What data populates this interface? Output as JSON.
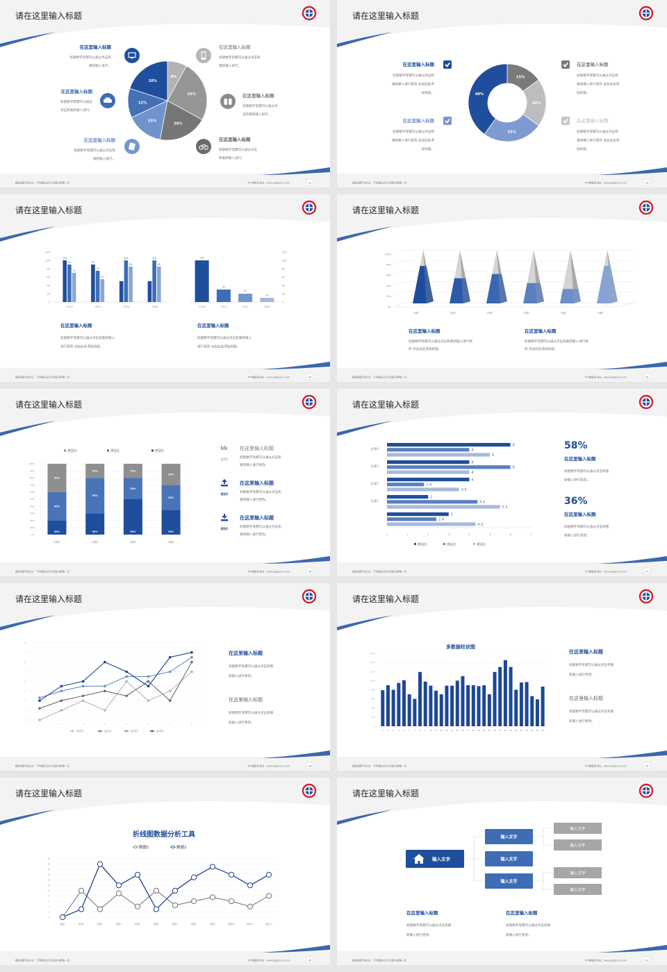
{
  "deck": {
    "slide_title": "请在这里输入标题",
    "footer_left": "模版标题字体方法：下列例图·幻灯片标题·说明第一页",
    "footer_right": "PPT模板网   网址：www.pptgenius.com"
  },
  "colors": {
    "dark_blue": "#1f4e9c",
    "mid_blue": "#3e6db5",
    "light_blue": "#7696cc",
    "pale_blue": "#a3b9de",
    "dark_gray": "#6f6f6f",
    "gray": "#959595",
    "light_gray": "#b7b7b7",
    "logo_red": "#d32030"
  },
  "slides": [
    {
      "page": "12",
      "items": [
        {
          "title": "在这里输入标题",
          "desc": [
            "标题数字等都可以通过点击和",
            "重新输入进行。"
          ],
          "icon": "monitor-icon"
        },
        {
          "title": "在这里输入标题",
          "desc": [
            "标题数字等都可以通过",
            "点击和重新输入进行。"
          ],
          "icon": "car-icon"
        },
        {
          "title": "在这里输入标题",
          "desc": [
            "标题数字等都可以通过点击和",
            "重新输入进行。"
          ],
          "icon": "book-icon"
        },
        {
          "title": "在这里输入标题",
          "desc": [
            "标题数字等都可以通过点击和",
            "重新输入进行。"
          ],
          "icon": "phone-icon"
        },
        {
          "title": "在这里输入标题",
          "desc": [
            "标题数字等都可以通过点",
            "击和重新输入进行。"
          ],
          "icon": "binoculars-icon"
        },
        {
          "title": "在这里输入标题",
          "desc": [
            "标题数字等都可以通过点击",
            "和重新输入进行。"
          ],
          "icon": "bicycle-icon"
        }
      ]
    },
    {
      "page": "13",
      "items": [
        {
          "title": "在这里输入标题",
          "desc": [
            "标题数字等都可以通过点击和",
            "重新输入进行更改 点击此处添",
            "加标题。"
          ],
          "icon": "checkbox-icon"
        },
        {
          "title": "在这里输入标题",
          "desc": [
            "标题数字等都可以通过点击和",
            "重新输入进行更改 点击此处添",
            "加标题。"
          ],
          "icon": "checkbox-icon"
        },
        {
          "title": "在这里输入标题",
          "desc": [
            "标题数字等都可以通过点击和",
            "重新输入进行更改 点击此处添",
            "加标题。"
          ],
          "icon": "checkbox-icon"
        },
        {
          "title": "在这里输入标题",
          "desc": [
            "标题数字等都可以通过点击和",
            "重新输入进行更改 点击此处添",
            "加标题。"
          ],
          "icon": "checkbox-icon"
        }
      ]
    },
    {
      "page": "14",
      "items": [
        {
          "title": "在这里输入标题",
          "desc": [
            "标题数字等都可以通过点击和重新输入",
            "进行更改 点击此处添加标题。"
          ]
        },
        {
          "title": "在这里输入标题",
          "desc": [
            "标题数字等都可以通过点击和重新输入",
            "进行更改 点击此处添加标题。"
          ]
        }
      ]
    },
    {
      "page": "15",
      "items": [
        {
          "title": "在这里输入标题",
          "desc": [
            "标题数字等都可以通过点击和重新输入进行更",
            "改 点击此处添加标题。"
          ]
        },
        {
          "title": "在这里输入标题",
          "desc": [
            "标题数字等都可以通过点击和重新输入进行更",
            "改 点击此处添加标题。"
          ]
        }
      ]
    },
    {
      "page": "16",
      "items": [
        {
          "title": "在这里输入标题",
          "desc": [
            "标题数字等都可以通过点击和",
            "重新输入进行更改。"
          ],
          "label": "类别3",
          "icon": "bar-chart-icon"
        },
        {
          "title": "在这里输入标题",
          "desc": [
            "标题数字等都可以通过点击和",
            "重新输入进行更改。"
          ],
          "label": "类别2",
          "icon": "upload-icon"
        },
        {
          "title": "在这里输入标题",
          "desc": [
            "标题数字等都可以通过点击和",
            "重新输入进行更改。"
          ],
          "label": "类别1",
          "icon": "download-icon"
        }
      ]
    },
    {
      "page": "17",
      "stats": [
        {
          "value": "58%",
          "title": "在这里输入标题",
          "desc": [
            "标题数字等都可以通过点击和重",
            "新输入进行更改。"
          ]
        },
        {
          "value": "36%",
          "title": "在这里输入标题",
          "desc": [
            "标题数字等都可以通过点击和重",
            "新输入进行更改。"
          ]
        }
      ]
    },
    {
      "page": "18",
      "items": [
        {
          "title": "在这里输入标题",
          "desc": [
            "标题数字等都可以通过点击和重",
            "新输入进行更改。"
          ]
        },
        {
          "title": "在这里输入标题",
          "desc": [
            "标题数字等都可以通过点击和重",
            "新输入进行更改。"
          ]
        }
      ]
    },
    {
      "page": "19",
      "items": [
        {
          "title": "在这里输入标题",
          "desc": [
            "标题数字等都可以通过点击和重",
            "新输入进行更改。"
          ]
        },
        {
          "title": "在这里输入标题",
          "desc": [
            "标题数字等都可以通过点击和重",
            "新输入进行更改。"
          ]
        }
      ]
    },
    {
      "page": "20"
    },
    {
      "page": "21",
      "diagram": {
        "root": "输入文字",
        "mids": [
          "输入文字",
          "输入文字",
          "输入文字"
        ],
        "leaves": [
          "输入文字",
          "输入文字",
          "输入文字",
          "输入文字"
        ]
      },
      "items": [
        {
          "title": "在这里输入标题",
          "desc": [
            "标题数字等都可以通过点击和重",
            "新输入进行更改。"
          ]
        },
        {
          "title": "在这里输入标题",
          "desc": [
            "标题数字等都可以通过点击和重",
            "新输入进行更改。"
          ]
        }
      ]
    }
  ],
  "chart_data": [
    {
      "type": "pie",
      "values": [
        8,
        25,
        20,
        15,
        12,
        20
      ],
      "labels": [
        "8%",
        "25%",
        "20%",
        "15%",
        "12%",
        "20%"
      ]
    },
    {
      "type": "pie",
      "donut": true,
      "values": [
        15,
        20,
        25,
        40
      ],
      "labels": [
        "15%",
        "20%",
        "25%",
        "40%"
      ]
    },
    {
      "type": "bar",
      "categories": [
        "2010",
        "2012",
        "2014",
        "2016"
      ],
      "ylim": [
        0,
        120
      ],
      "yticks": [
        "0",
        "20",
        "40",
        "60",
        "80",
        "100",
        "120"
      ],
      "series": [
        {
          "values": [
            100,
            90,
            50,
            50
          ],
          "labels": [
            "100",
            "90",
            null,
            null
          ]
        },
        {
          "values": [
            90,
            75,
            100,
            100
          ],
          "labels": [
            "90",
            "75",
            "100",
            "100"
          ]
        },
        {
          "values": [
            70,
            55,
            85,
            85
          ],
          "labels": [
            "70",
            "55",
            "85",
            "85"
          ]
        }
      ]
    },
    {
      "type": "bar",
      "categories": [
        "2016",
        "2014",
        "2012",
        "2010"
      ],
      "values": [
        100,
        30,
        20,
        10
      ],
      "labels": [
        "100",
        "30",
        "20",
        "10"
      ],
      "ylim": [
        0,
        120
      ],
      "yticks": [
        "0",
        "20",
        "40",
        "60",
        "80",
        "100",
        "120"
      ],
      "axis": "right"
    },
    {
      "type": "bar",
      "style": "3d-pyramid",
      "categories": [
        "分类1",
        "分类2",
        "分类3",
        "分类4",
        "分类5",
        "分类6"
      ],
      "values": [
        70,
        47,
        55,
        38,
        27,
        70
      ],
      "ylim": [
        0,
        100
      ],
      "yticks": [
        "0%",
        "20%",
        "40%",
        "60%",
        "80%",
        "100%"
      ]
    },
    {
      "type": "bar",
      "stacked": "percent",
      "categories": [
        "分类1",
        "分类2",
        "分类3",
        "分类4"
      ],
      "yticks": [
        "0%",
        "10%",
        "20%",
        "30%",
        "40%",
        "50%",
        "60%",
        "70%",
        "80%",
        "90%",
        "100%"
      ],
      "legend": "top",
      "series": [
        {
          "name": "类别1",
          "values": [
            20,
            30,
            50,
            35
          ],
          "labels": [
            "20%",
            "30%",
            "50%",
            "35%"
          ]
        },
        {
          "name": "类别2",
          "values": [
            40,
            50,
            30,
            35
          ],
          "labels": [
            "40%",
            "50%",
            "30%",
            "35%"
          ]
        },
        {
          "name": "类别3",
          "values": [
            40,
            20,
            20,
            30
          ],
          "labels": [
            "40%",
            "20%",
            "20%",
            "30%"
          ]
        }
      ]
    },
    {
      "type": "bar",
      "orientation": "horizontal",
      "categories": [
        "分类4",
        "分类3",
        "分类2",
        "分类1",
        ""
      ],
      "xlim": [
        0,
        7
      ],
      "xticks": [
        "0",
        "1",
        "2",
        "3",
        "4",
        "5",
        "6",
        "7"
      ],
      "legend": "bottom",
      "series": [
        {
          "name": "类别3",
          "values": [
            6,
            4,
            4,
            2,
            3
          ],
          "labels": [
            "6",
            "4",
            "4",
            "2",
            "3"
          ]
        },
        {
          "name": "类别2",
          "values": [
            4,
            6,
            1.8,
            4.4,
            2.4
          ],
          "labels": [
            "4",
            "6",
            "1.8",
            "4.4",
            "2.4"
          ]
        },
        {
          "name": "类别1",
          "values": [
            5,
            4,
            3.5,
            5.5,
            4.3
          ],
          "labels": [
            "5",
            "4",
            "3.5",
            "5.5",
            "4.3"
          ]
        }
      ]
    },
    {
      "type": "line",
      "x": [
        "1",
        "2",
        "3",
        "4",
        "5",
        "6",
        "7",
        "8"
      ],
      "ylim": [
        0,
        8
      ],
      "yticks": [
        "0",
        "1",
        "2",
        "3",
        "4",
        "5",
        "6",
        "7",
        "8"
      ],
      "legend": "bottom",
      "series": [
        {
          "name": "系列1",
          "values": [
            0,
            1,
            2,
            1,
            4,
            2,
            3,
            5
          ]
        },
        {
          "name": "系列2",
          "values": [
            1.2,
            2,
            2.5,
            3,
            2.5,
            4,
            2,
            6
          ]
        },
        {
          "name": "系列3",
          "values": [
            2.3,
            3,
            3.5,
            3.5,
            4.5,
            4.5,
            5,
            6.5
          ]
        },
        {
          "name": "系列4",
          "values": [
            2,
            3.5,
            4,
            6,
            5,
            3.5,
            6.5,
            7
          ]
        }
      ]
    },
    {
      "type": "bar",
      "title": "多数据柱状图",
      "ylim": [
        0,
        1600
      ],
      "yticks": [
        "0",
        "200",
        "400",
        "600",
        "800",
        "1,000",
        "1,200",
        "1,400",
        "1,600"
      ],
      "categories": [
        "1",
        "2",
        "3",
        "4",
        "5",
        "6",
        "7",
        "8",
        "9",
        "10",
        "11",
        "12",
        "13",
        "14",
        "15",
        "16",
        "17",
        "18",
        "19",
        "20",
        "21",
        "22",
        "23",
        "24",
        "25",
        "26",
        "27",
        "28",
        "29",
        "30",
        "31"
      ],
      "values": [
        790,
        900,
        800,
        950,
        1010,
        700,
        600,
        1190,
        980,
        890,
        780,
        700,
        890,
        890,
        1000,
        1100,
        900,
        900,
        880,
        900,
        700,
        1190,
        1300,
        1450,
        1300,
        800,
        960,
        970,
        660,
        590,
        870
      ]
    },
    {
      "type": "line",
      "title": "折线图数据分析工具",
      "legend": "top",
      "ylim": [
        0,
        22
      ],
      "yticks": [
        "0",
        "2",
        "4",
        "6",
        "8",
        "10",
        "12",
        "14",
        "16",
        "18",
        "20",
        "22"
      ],
      "x": [
        "数据1",
        "数据2",
        "数据3",
        "数据4",
        "数据5",
        "数据6",
        "数据7",
        "数据8",
        "数据9",
        "数据10",
        "数据11",
        "数据12"
      ],
      "series": [
        {
          "name": "数据1",
          "values": [
            0,
            10,
            3,
            9,
            4,
            10,
            4.5,
            6,
            7.5,
            6,
            4,
            8
          ]
        },
        {
          "name": "数据2",
          "values": [
            0,
            3,
            20,
            12,
            16,
            3,
            10,
            15,
            19,
            16,
            12,
            16
          ]
        }
      ]
    }
  ]
}
